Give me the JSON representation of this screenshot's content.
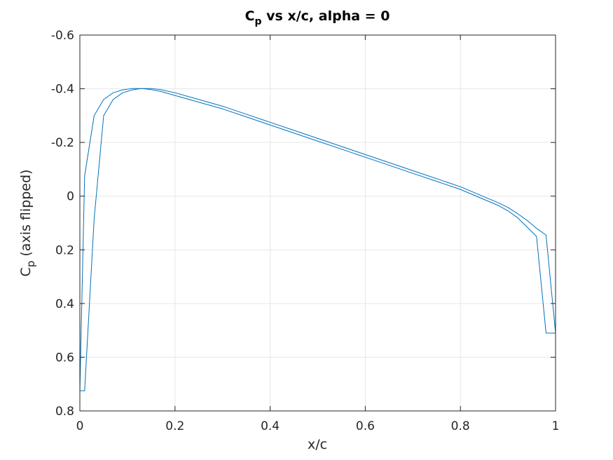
{
  "chart_data": {
    "type": "line",
    "title": {
      "main": "C",
      "subscript": "p",
      "rest": " vs x/c, alpha = 0"
    },
    "xlabel": "x/c",
    "ylabel": {
      "main": "C",
      "subscript": "p",
      "rest": " (axis flipped)"
    },
    "xlim": [
      0,
      1
    ],
    "ylim": [
      -0.6,
      0.8
    ],
    "y_reversed": true,
    "grid": true,
    "box": true,
    "x_ticks": [
      0,
      0.2,
      0.4,
      0.6,
      0.8,
      1
    ],
    "x_tick_labels": [
      "0",
      "0.2",
      "0.4",
      "0.6",
      "0.8",
      "1"
    ],
    "y_ticks": [
      -0.6,
      -0.4,
      -0.2,
      0,
      0.2,
      0.4,
      0.6,
      0.8
    ],
    "y_tick_labels": [
      "-0.6",
      "-0.4",
      "-0.2",
      "0",
      "0.2",
      "0.4",
      "0.6",
      "0.8"
    ],
    "colors": {
      "line": "#0072BD",
      "grid": "#e6e6e6",
      "axis": "#262626"
    },
    "series": [
      {
        "x": [
          1.0,
          0.98,
          0.96,
          0.94,
          0.92,
          0.9,
          0.88,
          0.86,
          0.84,
          0.8,
          0.75,
          0.7,
          0.65,
          0.6,
          0.55,
          0.5,
          0.45,
          0.4,
          0.35,
          0.3,
          0.25,
          0.2,
          0.17,
          0.15,
          0.13,
          0.11,
          0.09,
          0.07,
          0.05,
          0.03,
          0.01,
          0.0
        ],
        "y": [
          0.51,
          0.51,
          0.15,
          0.115,
          0.08,
          0.055,
          0.035,
          0.02,
          0.005,
          -0.025,
          -0.055,
          -0.085,
          -0.115,
          -0.145,
          -0.175,
          -0.205,
          -0.235,
          -0.265,
          -0.295,
          -0.325,
          -0.35,
          -0.375,
          -0.39,
          -0.397,
          -0.401,
          -0.401,
          -0.396,
          -0.385,
          -0.36,
          -0.3,
          -0.075,
          0.725
        ]
      },
      {
        "x": [
          0.0,
          0.01,
          0.03,
          0.05,
          0.07,
          0.09,
          0.11,
          0.13,
          0.15,
          0.17,
          0.2,
          0.25,
          0.3,
          0.35,
          0.4,
          0.45,
          0.5,
          0.55,
          0.6,
          0.65,
          0.7,
          0.75,
          0.8,
          0.84,
          0.86,
          0.88,
          0.9,
          0.92,
          0.94,
          0.96,
          0.98,
          1.0
        ],
        "y": [
          0.725,
          0.725,
          0.085,
          -0.3,
          -0.36,
          -0.385,
          -0.396,
          -0.401,
          -0.401,
          -0.397,
          -0.385,
          -0.36,
          -0.335,
          -0.305,
          -0.275,
          -0.245,
          -0.215,
          -0.185,
          -0.155,
          -0.125,
          -0.095,
          -0.065,
          -0.035,
          -0.005,
          0.01,
          0.025,
          0.042,
          0.065,
          0.09,
          0.12,
          0.145,
          0.51
        ]
      }
    ]
  }
}
